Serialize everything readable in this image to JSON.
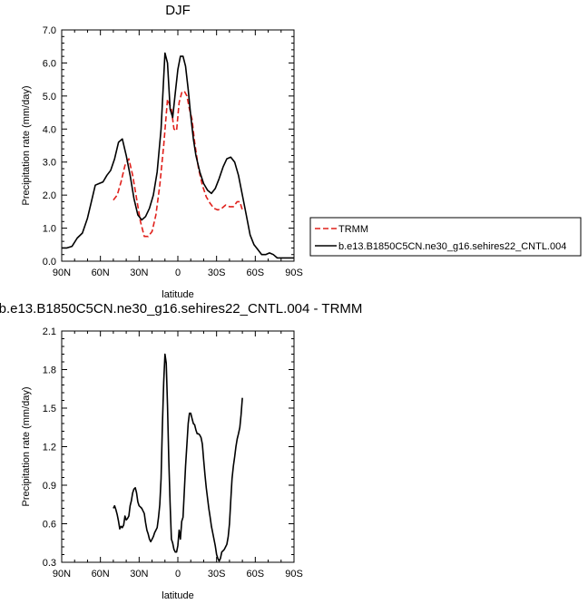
{
  "chart_data": [
    {
      "type": "line",
      "title": "DJF",
      "xlabel": "latitude",
      "ylabel": "Precipitation rate (mm/day)",
      "xlim": [
        90,
        -90
      ],
      "ylim": [
        0,
        7
      ],
      "xticks": [
        90,
        60,
        30,
        0,
        -30,
        -60,
        -90
      ],
      "xtick_labels": [
        "90N",
        "60N",
        "30N",
        "0",
        "30S",
        "60S",
        "90S"
      ],
      "yticks": [
        0,
        1,
        2,
        3,
        4,
        5,
        6,
        7
      ],
      "ytick_labels": [
        "0.0",
        "1.0",
        "2.0",
        "3.0",
        "4.0",
        "5.0",
        "6.0",
        "7.0"
      ],
      "legend_position": "right",
      "series": [
        {
          "name": "TRMM",
          "color": "#e0201b",
          "style": "dashed",
          "x": [
            50,
            47,
            44,
            41,
            38,
            35,
            32,
            29,
            26,
            23,
            20,
            17,
            14,
            11,
            8,
            5,
            3,
            1,
            -1,
            -3,
            -5,
            -7,
            -9,
            -11,
            -13,
            -16,
            -19,
            -22,
            -25,
            -28,
            -31,
            -34,
            -37,
            -40,
            -43,
            -46,
            -48,
            -50
          ],
          "y": [
            1.85,
            2.0,
            2.4,
            2.9,
            3.1,
            2.6,
            1.9,
            1.2,
            0.75,
            0.75,
            0.9,
            1.4,
            2.3,
            3.5,
            4.9,
            4.6,
            4.0,
            3.95,
            4.8,
            5.1,
            5.15,
            5.0,
            4.6,
            4.3,
            3.6,
            2.8,
            2.3,
            1.95,
            1.75,
            1.6,
            1.55,
            1.6,
            1.7,
            1.65,
            1.65,
            1.8,
            1.8,
            1.55
          ]
        },
        {
          "name": "b.e13.B1850C5CN.ne30_g16.sehires22_CNTL.004",
          "color": "#000000",
          "style": "solid",
          "x": [
            90,
            86,
            82,
            78,
            74,
            70,
            67,
            64,
            61,
            58,
            55,
            52,
            49,
            46,
            43,
            40,
            37,
            34,
            31,
            28,
            25,
            22,
            19,
            16,
            13,
            10,
            8,
            6,
            4,
            2,
            0,
            -2,
            -4,
            -6,
            -8,
            -10,
            -12,
            -14,
            -17,
            -20,
            -23,
            -26,
            -29,
            -32,
            -35,
            -38,
            -41,
            -44,
            -47,
            -50,
            -53,
            -56,
            -59,
            -62,
            -65,
            -68,
            -71,
            -74,
            -77,
            -80,
            -83,
            -86,
            -88,
            -90
          ],
          "y": [
            0.4,
            0.4,
            0.45,
            0.7,
            0.85,
            1.3,
            1.8,
            2.3,
            2.35,
            2.4,
            2.6,
            2.75,
            3.1,
            3.6,
            3.7,
            3.2,
            2.6,
            1.9,
            1.4,
            1.25,
            1.35,
            1.6,
            2.0,
            2.7,
            4.0,
            6.3,
            6.0,
            4.6,
            4.35,
            5.1,
            5.8,
            6.2,
            6.2,
            5.9,
            5.2,
            4.4,
            3.7,
            3.2,
            2.7,
            2.35,
            2.15,
            2.05,
            2.2,
            2.5,
            2.85,
            3.1,
            3.15,
            3.0,
            2.6,
            2.0,
            1.4,
            0.8,
            0.5,
            0.35,
            0.2,
            0.2,
            0.25,
            0.2,
            0.1,
            0.1,
            0.1,
            0.1,
            0.1,
            0.1
          ]
        }
      ]
    },
    {
      "type": "line",
      "title": "b.e13.B1850C5CN.ne30_g16.sehires22_CNTL.004 - TRMM",
      "xlabel": "latitude",
      "ylabel": "Precipitation rate (mm/day)",
      "xlim": [
        90,
        -90
      ],
      "ylim": [
        0.3,
        2.1
      ],
      "xticks": [
        90,
        60,
        30,
        0,
        -30,
        -60,
        -90
      ],
      "xtick_labels": [
        "90N",
        "60N",
        "30N",
        "0",
        "30S",
        "60S",
        "90S"
      ],
      "yticks": [
        0.3,
        0.6,
        0.9,
        1.2,
        1.5,
        1.8,
        2.1
      ],
      "ytick_labels": [
        "0.3",
        "0.6",
        "0.9",
        "1.2",
        "1.5",
        "1.8",
        "2.1"
      ],
      "series": [
        {
          "name": "",
          "color": "#000000",
          "style": "solid",
          "x": [
            50,
            49,
            48,
            47,
            46,
            45,
            44,
            43,
            42,
            41,
            40,
            39,
            38,
            37,
            36,
            35,
            34,
            33,
            32,
            31,
            30,
            29,
            28,
            27,
            26,
            25,
            24,
            23,
            22,
            21,
            20,
            19,
            18,
            17,
            16,
            15,
            14,
            13,
            12,
            11,
            10,
            9,
            8,
            7,
            6,
            5,
            4,
            3,
            2,
            1,
            0,
            -1,
            -2,
            -3,
            -4,
            -5,
            -6,
            -7,
            -8,
            -9,
            -10,
            -11,
            -12,
            -13,
            -14,
            -15,
            -16,
            -17,
            -18,
            -19,
            -20,
            -21,
            -22,
            -23,
            -24,
            -25,
            -26,
            -27,
            -28,
            -29,
            -30,
            -31,
            -32,
            -33,
            -34,
            -35,
            -36,
            -37,
            -38,
            -39,
            -40,
            -41,
            -42,
            -43,
            -44,
            -45,
            -46,
            -47,
            -48,
            -49,
            -50
          ],
          "y": [
            0.72,
            0.74,
            0.71,
            0.67,
            0.62,
            0.56,
            0.58,
            0.57,
            0.59,
            0.66,
            0.63,
            0.64,
            0.66,
            0.74,
            0.78,
            0.84,
            0.87,
            0.88,
            0.84,
            0.77,
            0.74,
            0.73,
            0.72,
            0.7,
            0.68,
            0.61,
            0.55,
            0.52,
            0.48,
            0.46,
            0.48,
            0.5,
            0.53,
            0.55,
            0.57,
            0.65,
            0.75,
            0.95,
            1.35,
            1.7,
            1.92,
            1.85,
            1.52,
            1.1,
            0.75,
            0.48,
            0.45,
            0.4,
            0.38,
            0.38,
            0.43,
            0.55,
            0.48,
            0.62,
            0.65,
            0.85,
            1.05,
            1.22,
            1.38,
            1.46,
            1.46,
            1.42,
            1.38,
            1.37,
            1.33,
            1.3,
            1.3,
            1.29,
            1.27,
            1.22,
            1.1,
            0.98,
            0.88,
            0.8,
            0.72,
            0.65,
            0.58,
            0.53,
            0.48,
            0.43,
            0.36,
            0.33,
            0.31,
            0.33,
            0.38,
            0.39,
            0.4,
            0.42,
            0.44,
            0.5,
            0.6,
            0.78,
            0.95,
            1.05,
            1.12,
            1.2,
            1.26,
            1.3,
            1.35,
            1.45,
            1.58
          ]
        }
      ]
    }
  ]
}
